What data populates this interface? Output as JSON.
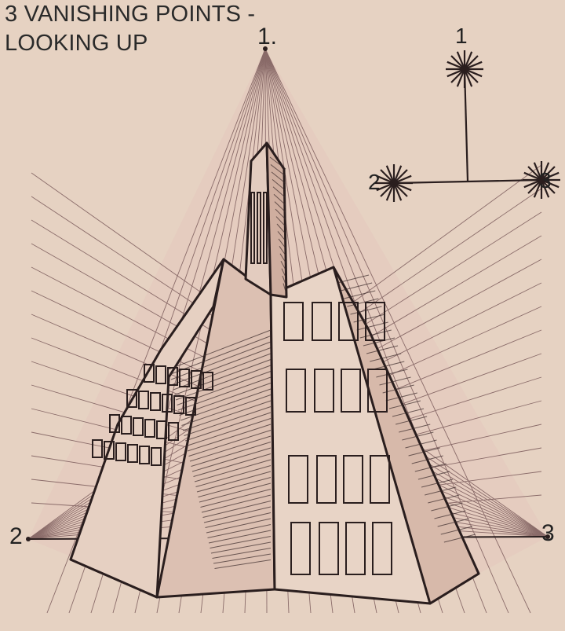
{
  "title": {
    "line1": "3 VANISHING POINTS -",
    "line2": "LOOKING UP"
  },
  "vanishing_points": {
    "vp1_label": "1.",
    "vp2_label": "2",
    "vp3_label": "3"
  },
  "key": {
    "label_1": "1",
    "label_2": "2",
    "label_3": "3"
  },
  "colors": {
    "background": "#e6d2c2",
    "ink": "#2a1e1e",
    "guide_line": "#7a5a5a",
    "pyramid_tint": "#e3c6bd"
  }
}
